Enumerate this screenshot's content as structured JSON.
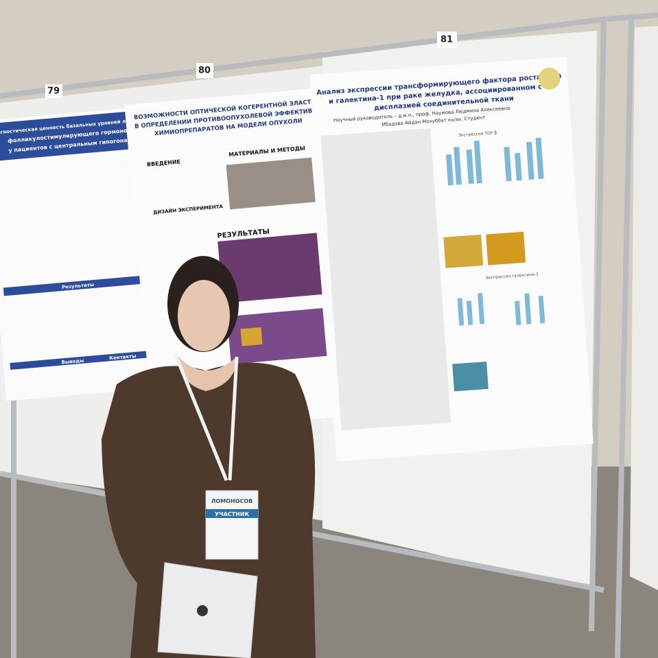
{
  "boards": [
    {
      "number": "79"
    },
    {
      "number": "80"
    },
    {
      "number": "81"
    }
  ],
  "posters": [
    {
      "title_lines": [
        "Диагностическая ценность базальных уровней лютеинизирующего и",
        "фолликулостимулирующего гормонов",
        "у пациентов с центральным гипогонадизмом"
      ],
      "sections": [
        "Результаты",
        "Выводы",
        "Контакты"
      ]
    },
    {
      "title_lines": [
        "ВОЗМОЖНОСТИ ОПТИЧЕСКОЙ КОГЕРЕНТНОЙ ЭЛАСТОГРАФИИ",
        "В ОПРЕДЕЛЕНИИ ПРОТИВООПУХОЛЕВОЙ ЭФФЕКТИВНОСТИ",
        "ХИМИОПРЕПАРАТОВ НА МОДЕЛИ ОПУХОЛИ"
      ],
      "sections": [
        "ВВЕДЕНИЕ",
        "МАТЕРИАЛЫ И МЕТОДЫ",
        "ДИЗАЙН ЭКСПЕРИМЕНТА",
        "РЕЗУЛЬТАТЫ"
      ]
    },
    {
      "title_lines": [
        "Анализ экспрессии трансформирующего фактора роста бета",
        "и галектина-1 при раке желудка, ассоциированном с",
        "дисплазией соединительной ткани"
      ],
      "supervisor": "Научный руководитель – д.м.н., проф. Наумова Людмила Алексеевна",
      "author": "Ибадова Айдан Мохуббат кызы, Студент",
      "sections": [
        "Экспрессия TGF-β",
        "Экспрессия галектина-1"
      ]
    }
  ],
  "badge": {
    "org": "ЛОМОНОСОВ",
    "role": "УЧАСТНИК"
  }
}
